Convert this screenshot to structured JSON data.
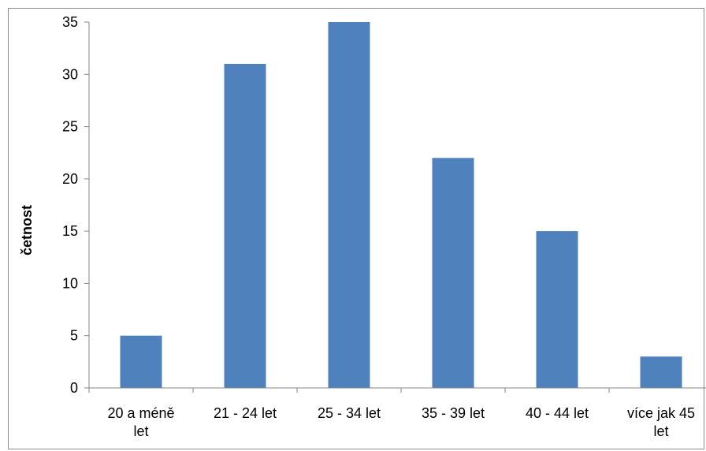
{
  "chart_data": {
    "type": "bar",
    "title": "",
    "xlabel": "",
    "ylabel": "četnost",
    "categories": [
      [
        "20 a méně",
        "let"
      ],
      [
        "21 - 24 let"
      ],
      [
        "25 - 34 let"
      ],
      [
        "35 - 39 let"
      ],
      [
        "40 - 44 let"
      ],
      [
        "více jak 45",
        "let"
      ]
    ],
    "values": [
      5,
      31,
      35,
      22,
      15,
      3
    ],
    "ylim": [
      0,
      35
    ],
    "yticks": [
      0,
      5,
      10,
      15,
      20,
      25,
      30,
      35
    ],
    "grid": false,
    "legend": "none",
    "bar_color": "#4f81bd",
    "axis_color": "#868686"
  }
}
